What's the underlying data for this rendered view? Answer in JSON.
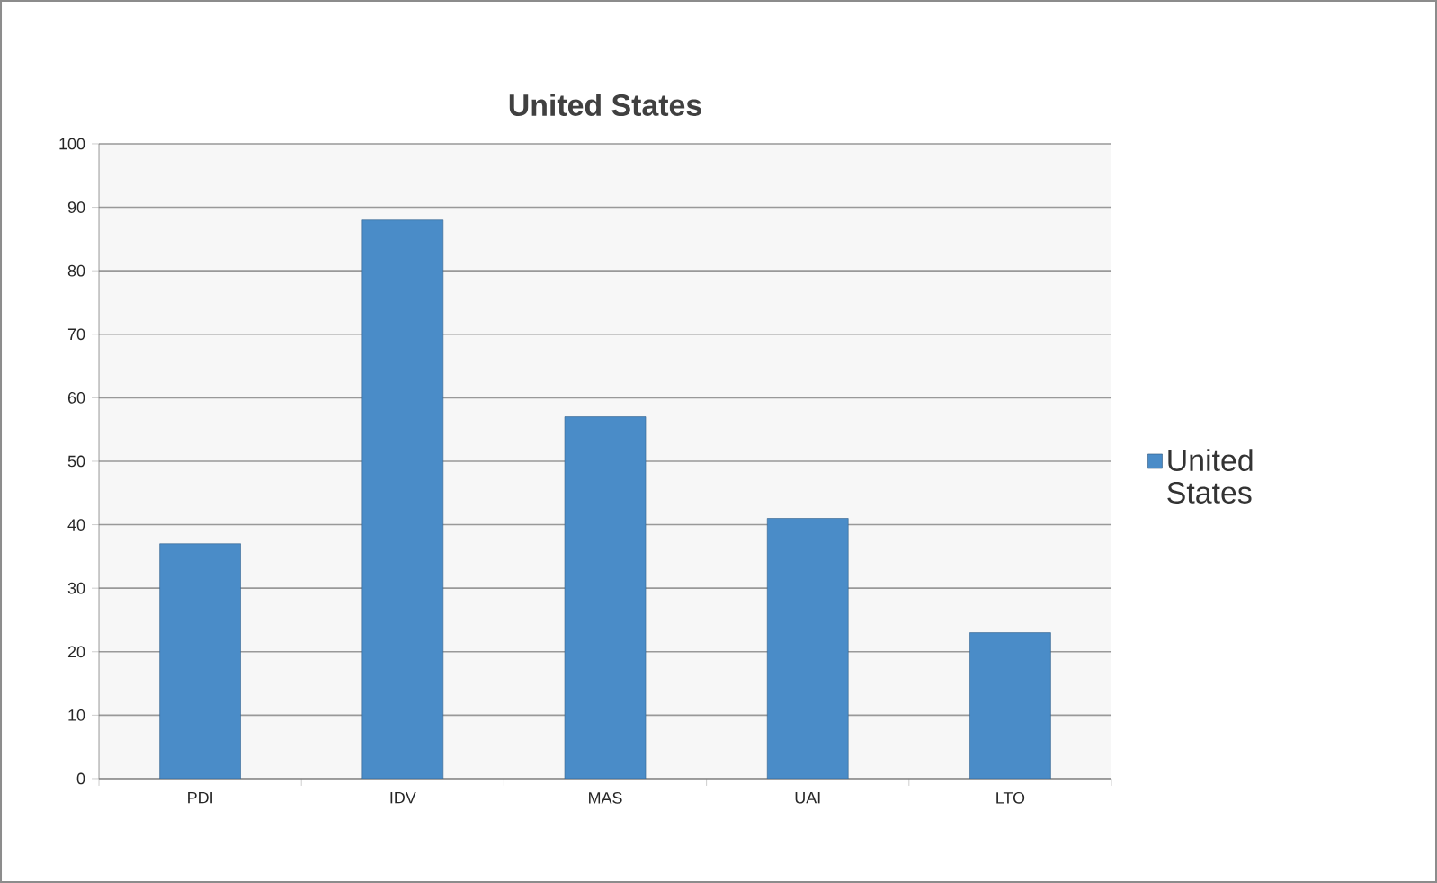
{
  "chart_data": {
    "type": "bar",
    "title": "United States",
    "categories": [
      "PDI",
      "IDV",
      "MAS",
      "UAI",
      "LTO"
    ],
    "series": [
      {
        "name": "United States",
        "color": "#4a8cc8",
        "values": [
          37,
          88,
          57,
          41,
          23
        ]
      }
    ],
    "ylim": [
      0,
      100
    ],
    "yticks": [
      0,
      10,
      20,
      30,
      40,
      50,
      60,
      70,
      80,
      90,
      100
    ],
    "grid": "y",
    "legend": "right"
  }
}
